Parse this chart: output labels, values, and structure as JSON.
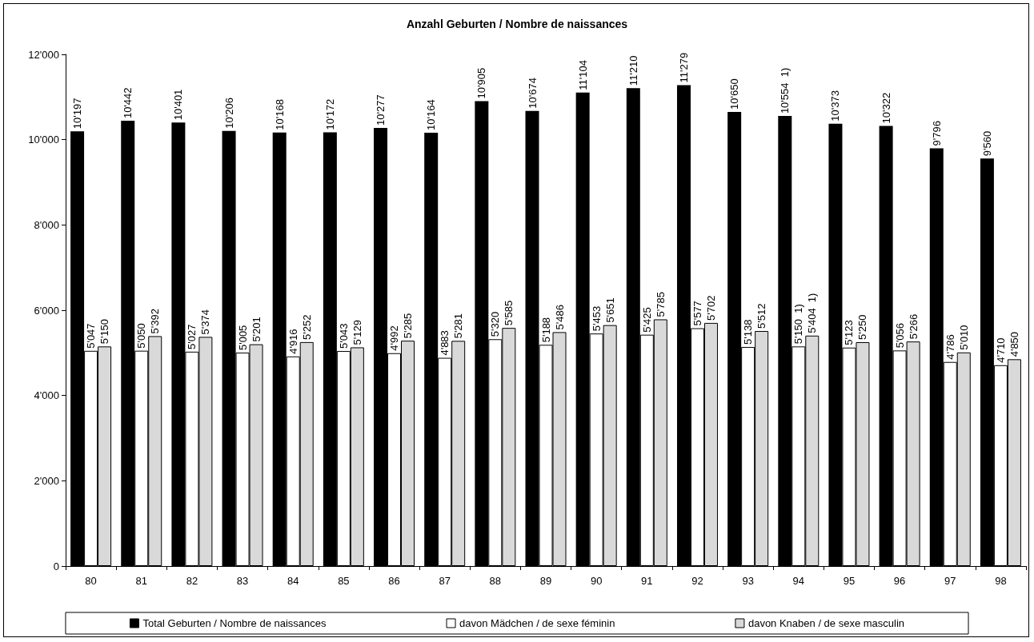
{
  "chart_data": {
    "type": "bar",
    "title": "Anzahl Geburten / Nombre de naissances",
    "categories": [
      "80",
      "81",
      "82",
      "83",
      "84",
      "85",
      "86",
      "87",
      "88",
      "89",
      "90",
      "91",
      "92",
      "93",
      "94",
      "95",
      "96",
      "97",
      "98"
    ],
    "series": [
      {
        "name": "Total Geburten / Nombre de naissances",
        "color": "#000000",
        "values": [
          10197,
          10442,
          10401,
          10206,
          10168,
          10172,
          10277,
          10164,
          10905,
          10674,
          11104,
          11210,
          11279,
          10650,
          10554,
          10373,
          10322,
          9796,
          9560
        ],
        "value_labels": [
          "10'197",
          "10'442",
          "10'401",
          "10'206",
          "10'168",
          "10'172",
          "10'277",
          "10'164",
          "10'905",
          "10'674",
          "11'104",
          "11'210",
          "11'279",
          "10'650",
          "10'554  1)",
          "10'373",
          "10'322",
          "9'796",
          "9'560"
        ]
      },
      {
        "name": "davon Mädchen / de sexe féminin",
        "color": "#ffffff",
        "values": [
          5047,
          5050,
          5027,
          5005,
          4916,
          5043,
          4992,
          4883,
          5320,
          5188,
          5453,
          5425,
          5577,
          5138,
          5150,
          5123,
          5056,
          4786,
          4710
        ],
        "value_labels": [
          "5'047",
          "5'050",
          "5'027",
          "5'005",
          "4'916",
          "5'043",
          "4'992",
          "4'883",
          "5'320",
          "5'188",
          "5'453",
          "5'425",
          "5'577",
          "5'138",
          "5'150  1)",
          "5'123",
          "5'056",
          "4'786",
          "4'710"
        ]
      },
      {
        "name": "davon Knaben / de sexe masculin",
        "color": "#d9d9d9",
        "values": [
          5150,
          5392,
          5374,
          5201,
          5252,
          5129,
          5285,
          5281,
          5585,
          5486,
          5651,
          5785,
          5702,
          5512,
          5404,
          5250,
          5266,
          5010,
          4850
        ],
        "value_labels": [
          "5'150",
          "5'392",
          "5'374",
          "5'201",
          "5'252",
          "5'129",
          "5'285",
          "5'281",
          "5'585",
          "5'486",
          "5'651",
          "5'785",
          "5'702",
          "5'512",
          "5'404  1)",
          "5'250",
          "5'266",
          "5'010",
          "4'850"
        ]
      }
    ],
    "ylim": [
      0,
      12000
    ],
    "yticks": [
      {
        "value": 0,
        "label": "0"
      },
      {
        "value": 2000,
        "label": "2'000"
      },
      {
        "value": 4000,
        "label": "4'000"
      },
      {
        "value": 6000,
        "label": "6'000"
      },
      {
        "value": 8000,
        "label": "8'000"
      },
      {
        "value": 10000,
        "label": "10'000"
      },
      {
        "value": 12000,
        "label": "12'000"
      }
    ],
    "grid": false,
    "legend": "bottom"
  }
}
